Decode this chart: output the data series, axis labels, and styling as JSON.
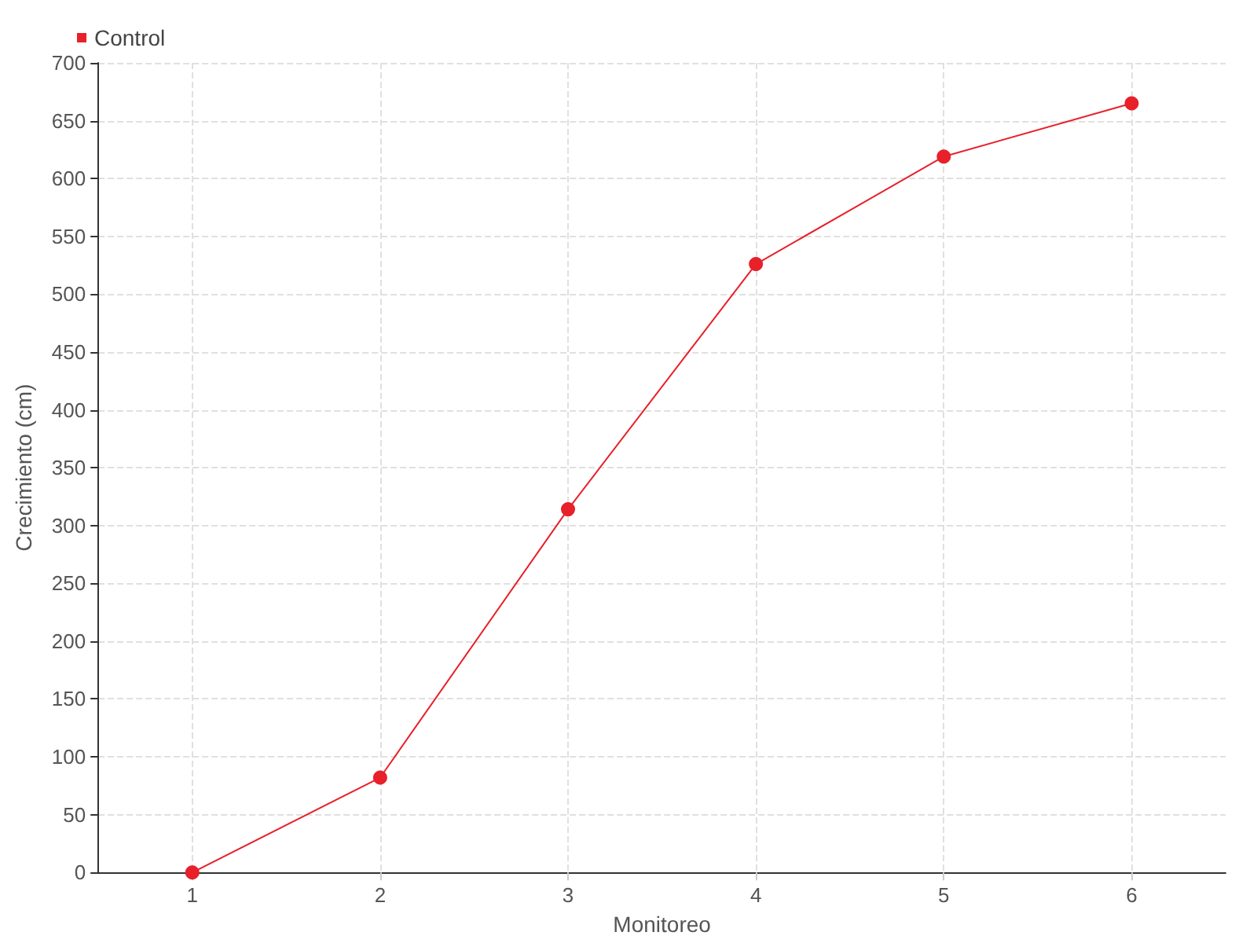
{
  "chart_data": {
    "type": "line",
    "xlabel": "Monitoreo",
    "ylabel": "Crecimiento (cm)",
    "x": [
      1,
      2,
      3,
      4,
      5,
      6
    ],
    "series": [
      {
        "name": "Control",
        "color": "#e8202a",
        "values": [
          0,
          82,
          314,
          526,
          619,
          665
        ]
      }
    ],
    "xlim": [
      0.5,
      6.5
    ],
    "xticks": [
      1,
      2,
      3,
      4,
      5,
      6
    ],
    "ylim": [
      0,
      700
    ],
    "yticks": [
      0,
      50,
      100,
      150,
      200,
      250,
      300,
      350,
      400,
      450,
      500,
      550,
      600,
      650,
      700
    ],
    "grid": true,
    "legend": "top left",
    "marker": "circle",
    "line_style": "solid"
  }
}
